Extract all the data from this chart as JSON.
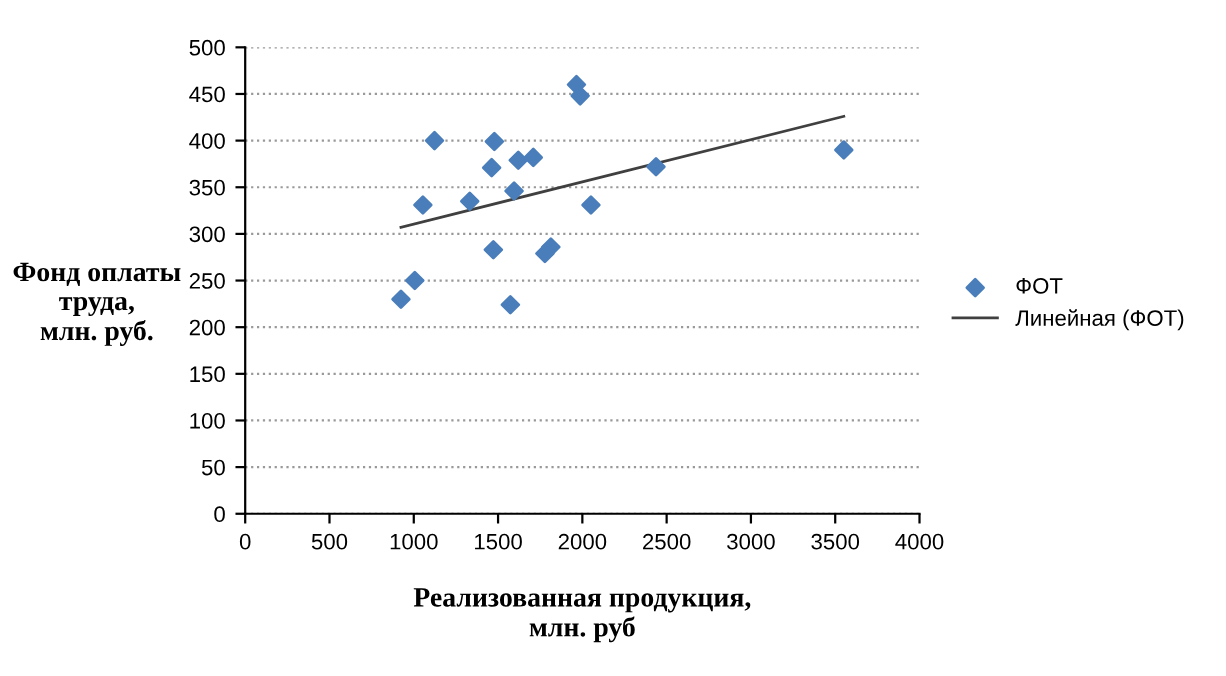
{
  "chart_data": {
    "type": "scatter",
    "xlabel": "Реализованная продукция,\nмлн. руб",
    "ylabel": "Фонд оплаты\nтруда,\nмлн. руб.",
    "series": [
      {
        "name": "ФОТ",
        "type": "scatter",
        "color": "#4a7ebb",
        "marker": "diamond",
        "x": [
          924,
          1006,
          1054,
          1123,
          1332,
          1462,
          1478,
          1472,
          1573,
          1595,
          1620,
          1709,
          1778,
          1813,
          1965,
          1987,
          2051,
          2437,
          3551
        ],
        "values": [
          230,
          250,
          331,
          400,
          335,
          371,
          399,
          283,
          224,
          346,
          379,
          382,
          279,
          286,
          460,
          448,
          331,
          372,
          390
        ]
      },
      {
        "name": "Линейная (ФОТ)",
        "type": "line",
        "color": "#404040",
        "marker": "none",
        "line_style": "solid",
        "x": [
          924,
          3551
        ],
        "values": [
          307,
          426
        ]
      }
    ],
    "xlim": [
      0,
      4000
    ],
    "xticks": [
      0,
      500,
      1000,
      1500,
      2000,
      2500,
      3000,
      3500,
      4000
    ],
    "ylim": [
      0,
      500
    ],
    "yticks": [
      0,
      50,
      100,
      150,
      200,
      250,
      300,
      350,
      400,
      450,
      500
    ],
    "grid": "y",
    "legend": "right"
  }
}
